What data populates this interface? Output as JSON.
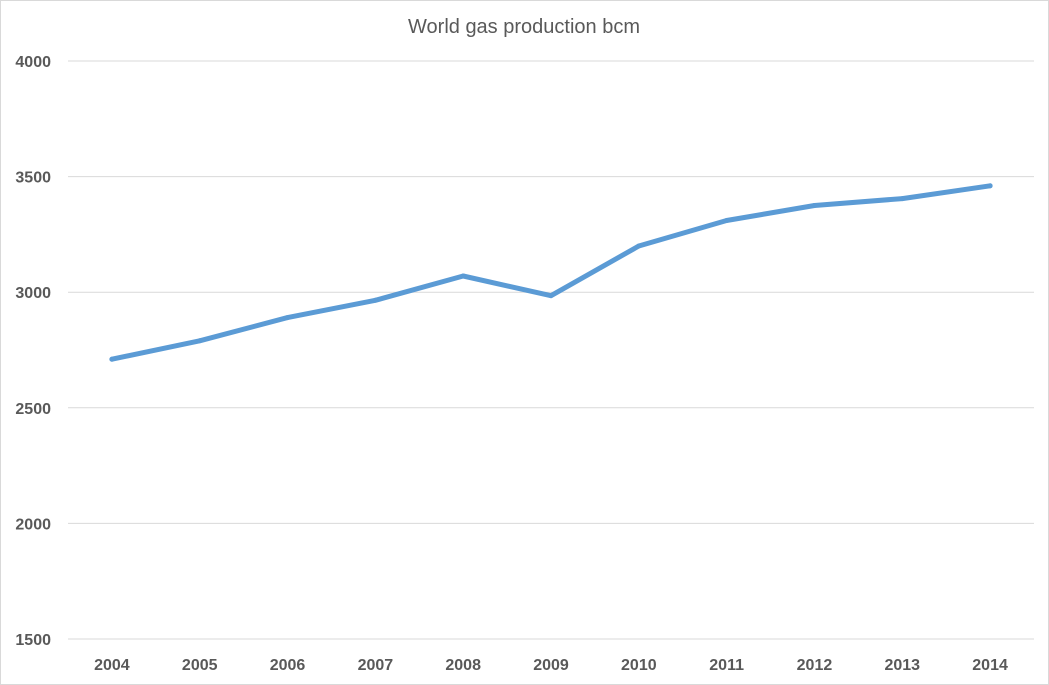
{
  "chart_data": {
    "type": "line",
    "title": "World gas production bcm",
    "xlabel": "",
    "ylabel": "",
    "categories": [
      "2004",
      "2005",
      "2006",
      "2007",
      "2008",
      "2009",
      "2010",
      "2011",
      "2012",
      "2013",
      "2014"
    ],
    "series": [
      {
        "values": [
          2710,
          2790,
          2890,
          2965,
          3070,
          2985,
          3200,
          3310,
          3375,
          3405,
          3460
        ],
        "color": "#5b9bd5"
      }
    ],
    "y_ticks": [
      "4000",
      "3500",
      "3000",
      "2500",
      "2000",
      "1500"
    ],
    "ylim": [
      1500,
      4000
    ],
    "grid": true,
    "legend": "none"
  }
}
